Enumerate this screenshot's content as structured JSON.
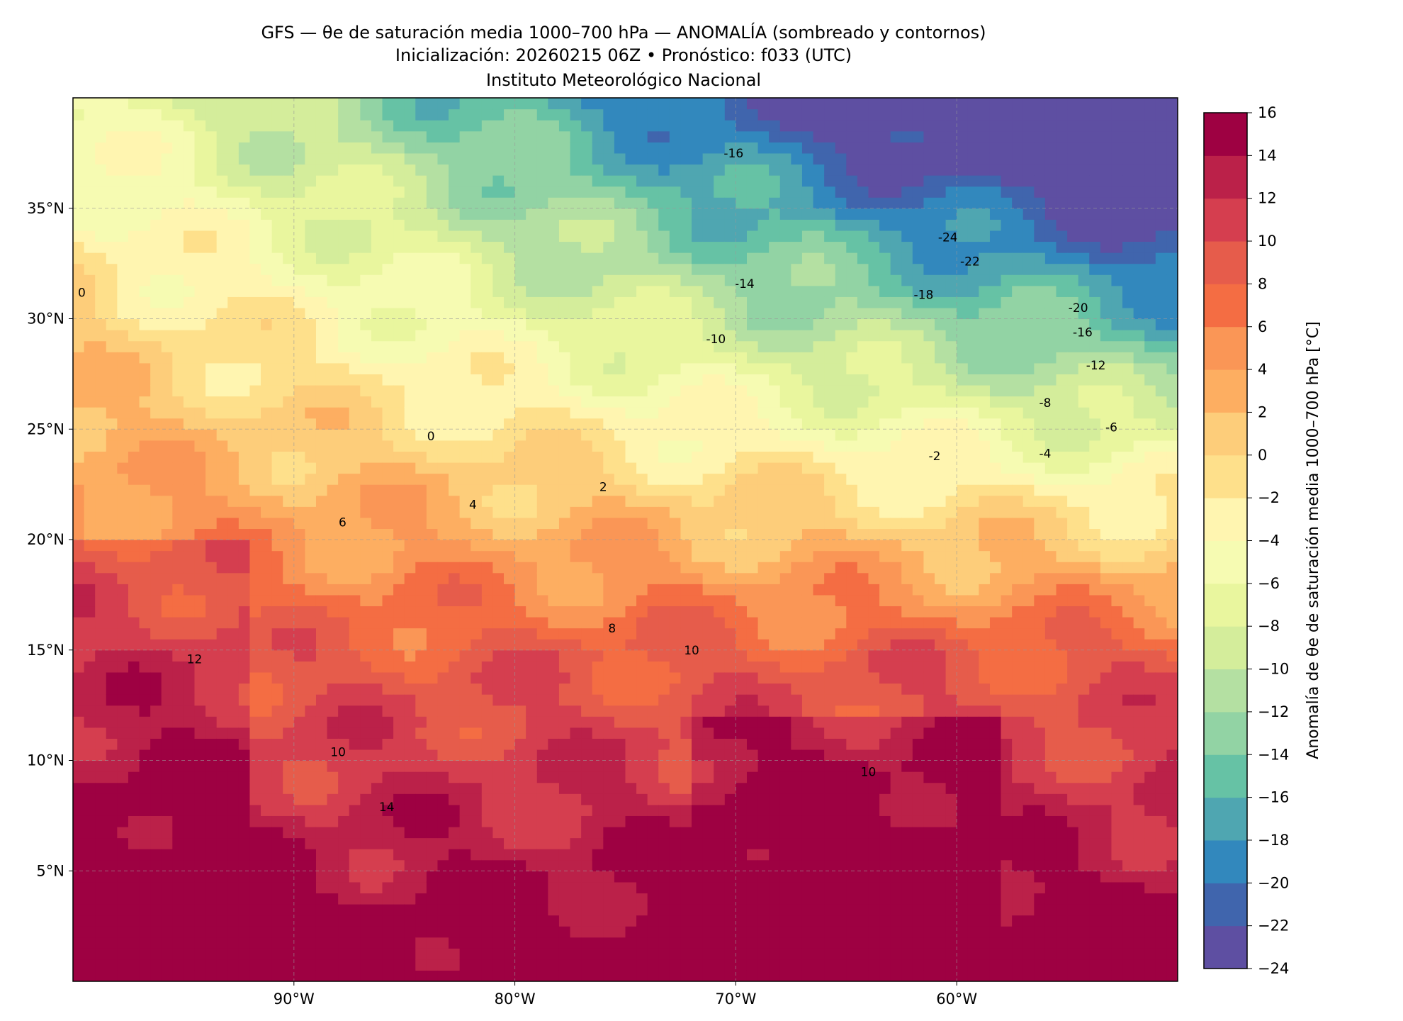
{
  "chart_data": {
    "type": "heatmap",
    "title": "GFS — θe de saturación media 1000–700 hPa — ANOMALÍA (sombreado y contornos)",
    "subtitle": "Inicialización: 20260215 06Z   •   Pronóstico: f033 (UTC)",
    "institution": "Instituto Meteorológico Nacional",
    "xlim": [
      -100,
      -50
    ],
    "ylim": [
      0,
      40
    ],
    "grid": true,
    "x_ticks": [
      {
        "value": -90,
        "label": "90°W"
      },
      {
        "value": -80,
        "label": "80°W"
      },
      {
        "value": -70,
        "label": "70°W"
      },
      {
        "value": -60,
        "label": "60°W"
      }
    ],
    "y_ticks": [
      {
        "value": 35,
        "label": "35°N"
      },
      {
        "value": 30,
        "label": "30°N"
      },
      {
        "value": 25,
        "label": "25°N"
      },
      {
        "value": 20,
        "label": "20°N"
      },
      {
        "value": 15,
        "label": "15°N"
      },
      {
        "value": 10,
        "label": "10°N"
      },
      {
        "value": 5,
        "label": "5°N"
      }
    ],
    "colorbar": {
      "label": "Anomalía de θe de saturación media 1000–700 hPa [°C]",
      "levels": [
        -24,
        -22,
        -20,
        -18,
        -16,
        -14,
        -12,
        -10,
        -8,
        -6,
        -4,
        -2,
        0,
        2,
        4,
        6,
        8,
        10,
        12,
        14,
        16
      ],
      "tick_labels": [
        "16",
        "14",
        "12",
        "10",
        "8",
        "6",
        "4",
        "2",
        "0",
        "−2",
        "−4",
        "−6",
        "−8",
        "−10",
        "−12",
        "−14",
        "−16",
        "−18",
        "−20",
        "−22",
        "−24"
      ],
      "colors": [
        "#5e4fa2",
        "#4065ad",
        "#3288bd",
        "#4fa6b1",
        "#66c2a5",
        "#92d3a4",
        "#b4e0a2",
        "#d4ed9b",
        "#e9f69e",
        "#f6fbb2",
        "#fff5b0",
        "#fee08b",
        "#fdcd7a",
        "#fdae61",
        "#fa9656",
        "#f46d43",
        "#e65c4b",
        "#d53e4f",
        "#bb2149",
        "#9e0142"
      ]
    },
    "contour_labels": [
      {
        "lon": -83.8,
        "lat": 24.5,
        "text": "0"
      },
      {
        "lon": -76,
        "lat": 22.2,
        "text": "2"
      },
      {
        "lon": -81.9,
        "lat": 21.4,
        "text": "4"
      },
      {
        "lon": -87.8,
        "lat": 20.6,
        "text": "6"
      },
      {
        "lon": -75.6,
        "lat": 15.8,
        "text": "8"
      },
      {
        "lon": -72,
        "lat": 14.8,
        "text": "10"
      },
      {
        "lon": -64,
        "lat": 9.3,
        "text": "10"
      },
      {
        "lon": -85.8,
        "lat": 7.7,
        "text": "14"
      },
      {
        "lon": -88,
        "lat": 10.2,
        "text": "10"
      },
      {
        "lon": -94.5,
        "lat": 14.4,
        "text": "12"
      },
      {
        "lon": -61,
        "lat": 23.6,
        "text": "-2"
      },
      {
        "lon": -56,
        "lat": 23.7,
        "text": "-4"
      },
      {
        "lon": -56,
        "lat": 26,
        "text": "-8"
      },
      {
        "lon": -53,
        "lat": 24.9,
        "text": "-6"
      },
      {
        "lon": -53.7,
        "lat": 27.7,
        "text": "-12"
      },
      {
        "lon": -70.9,
        "lat": 28.9,
        "text": "-10"
      },
      {
        "lon": -54.3,
        "lat": 29.2,
        "text": "-16"
      },
      {
        "lon": -54.5,
        "lat": 30.3,
        "text": "-20"
      },
      {
        "lon": -61.5,
        "lat": 30.9,
        "text": "-18"
      },
      {
        "lon": -59.4,
        "lat": 32.4,
        "text": "-22"
      },
      {
        "lon": -60.4,
        "lat": 33.5,
        "text": "-24"
      },
      {
        "lon": -69.6,
        "lat": 31.4,
        "text": "-14"
      },
      {
        "lon": -70.1,
        "lat": 37.3,
        "text": "-16"
      },
      {
        "lon": -99.6,
        "lat": 31,
        "text": "0"
      }
    ]
  }
}
